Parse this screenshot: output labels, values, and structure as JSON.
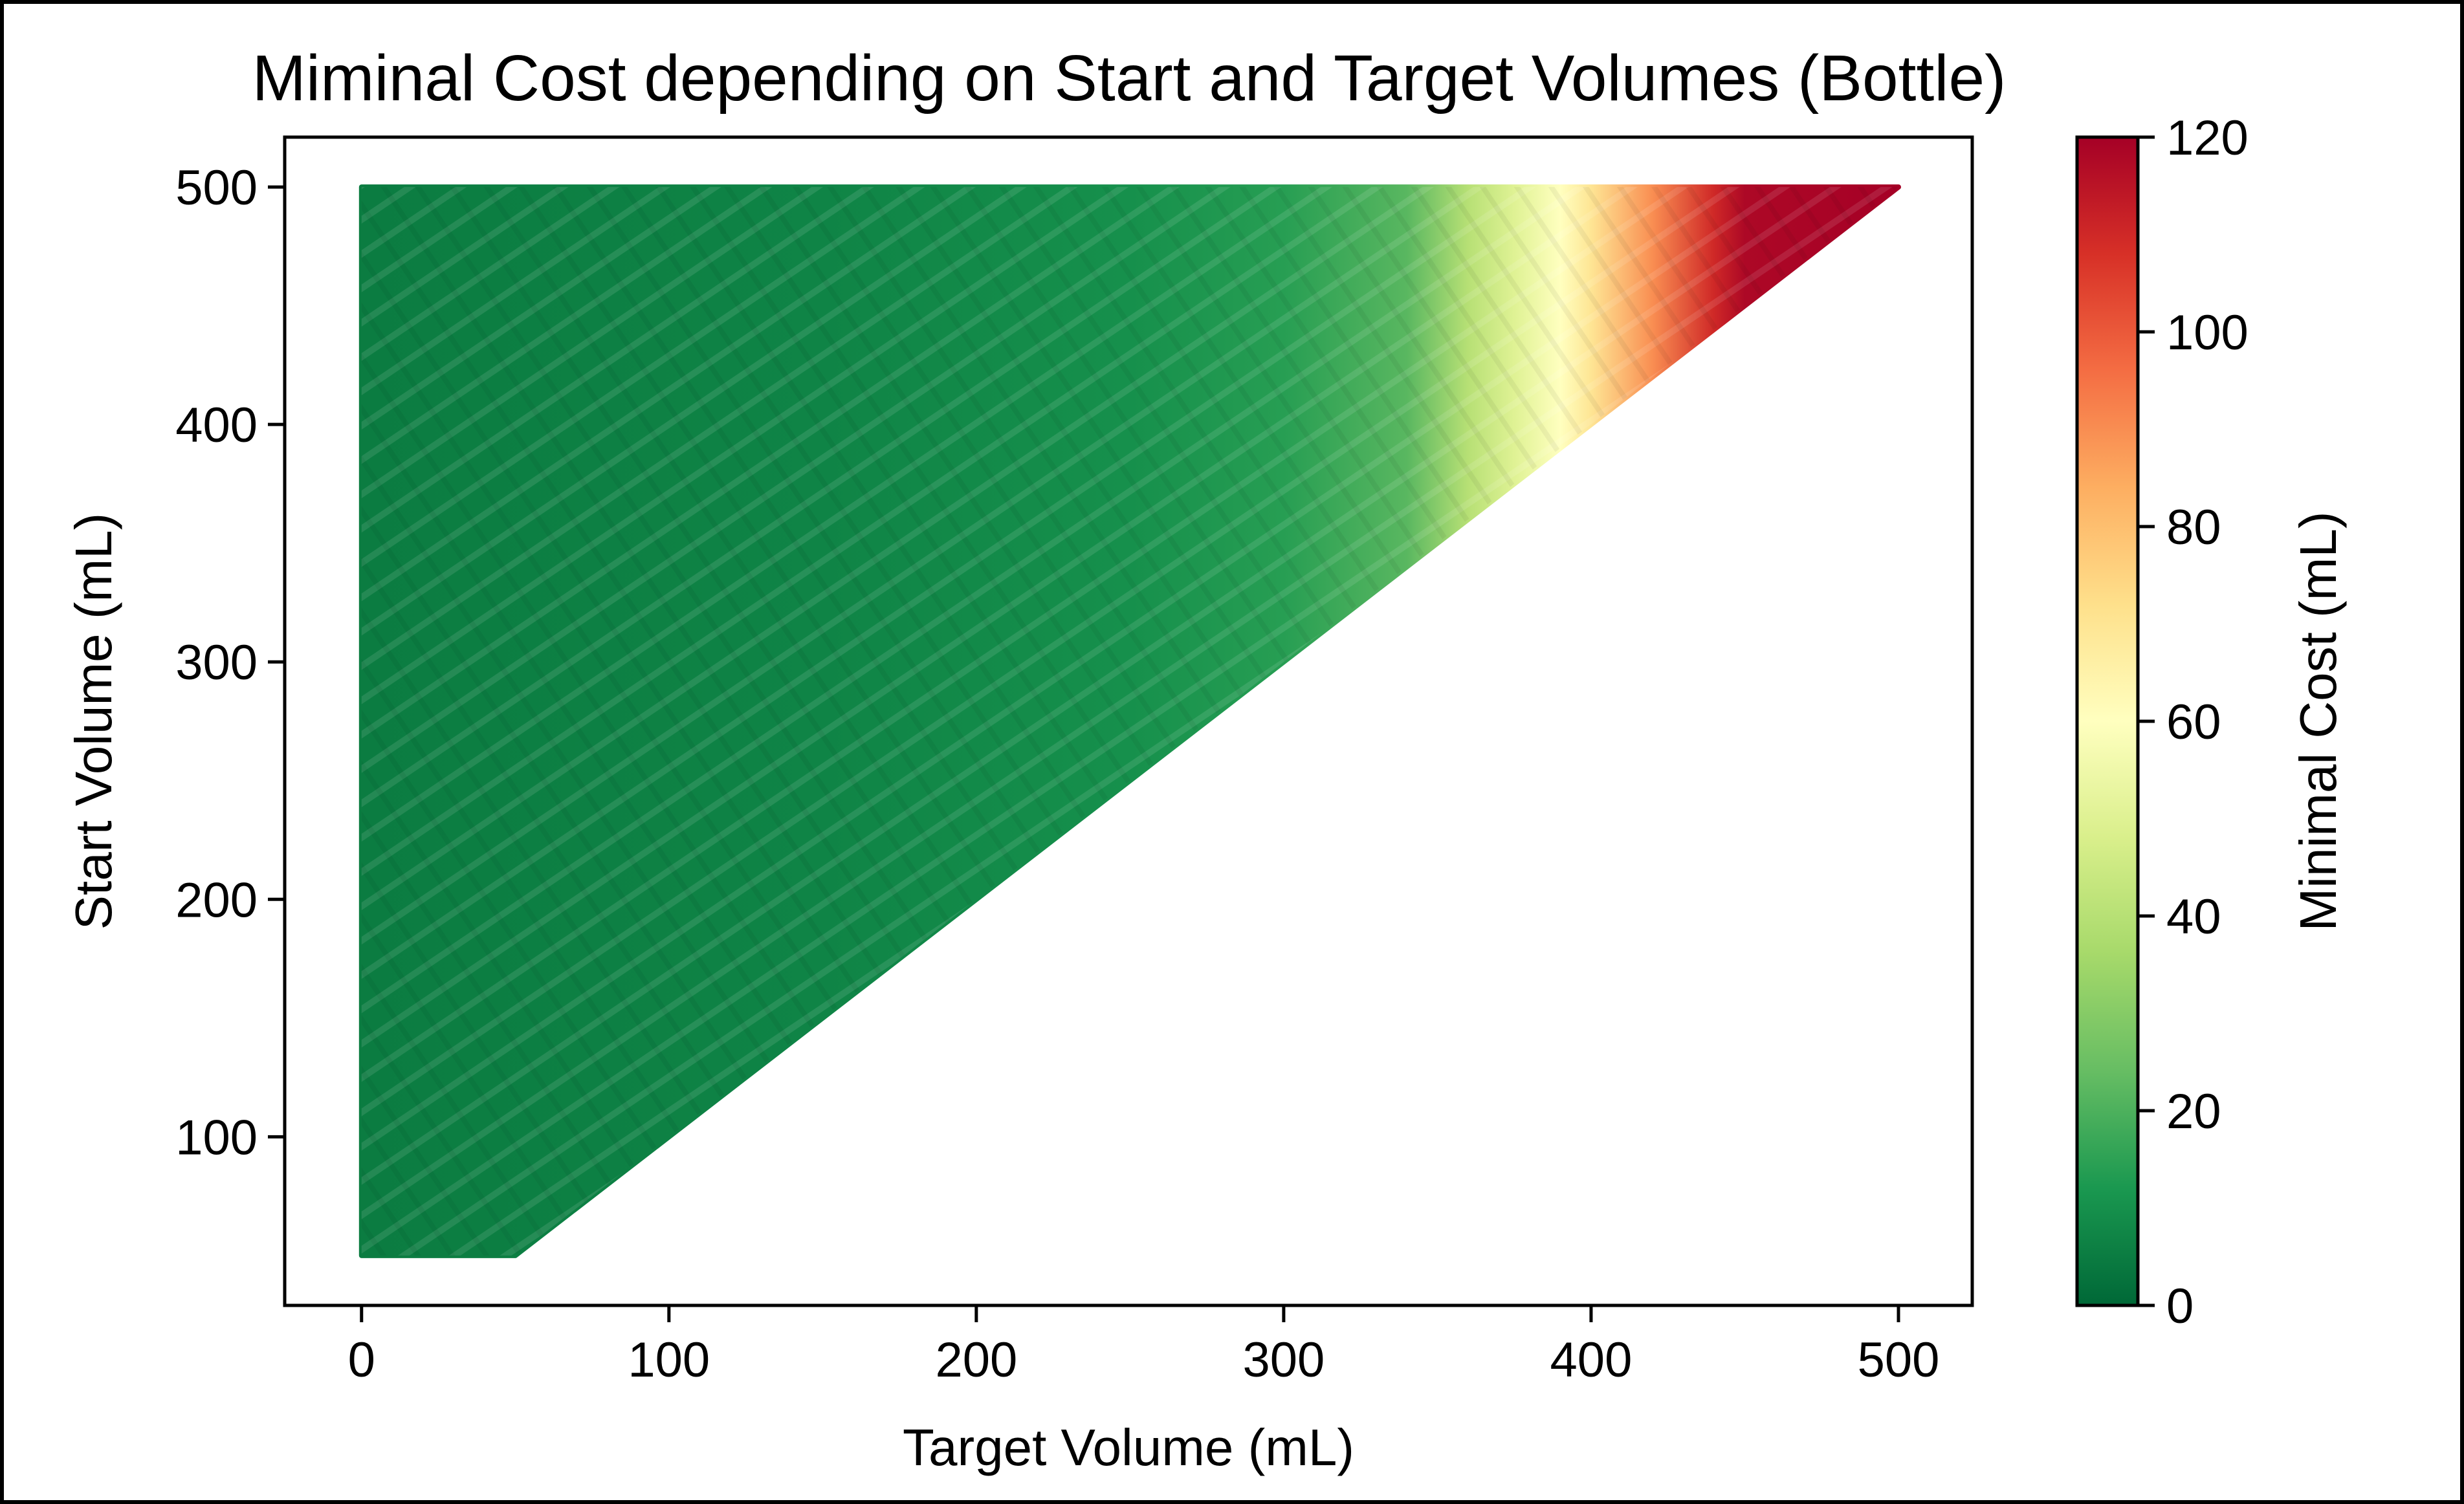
{
  "chart_data": {
    "type": "heatmap",
    "title": "Miminal Cost depending on Start and Target Volumes (Bottle)",
    "xlabel": "Target Volume (mL)",
    "ylabel": "Start Volume (mL)",
    "colorbar_label": "Minimal Cost (mL)",
    "colormap": "RdYlGn_r",
    "xlim": [
      -25,
      524
    ],
    "ylim": [
      29,
      521
    ],
    "clim": [
      0,
      120
    ],
    "x_ticks": [
      0,
      100,
      200,
      300,
      400,
      500
    ],
    "y_ticks": [
      100,
      200,
      300,
      400,
      500
    ],
    "colorbar_ticks": [
      0,
      20,
      40,
      60,
      80,
      100,
      120
    ],
    "domain": {
      "description": "Target Volume from 0 to Start Volume; Start Volume from 50 to 500",
      "x_min": 0,
      "start_min": 50,
      "start_max": 500
    },
    "cost_profile": {
      "x": [
        0,
        150,
        250,
        300,
        340,
        360,
        375,
        390,
        400,
        420,
        440,
        450,
        500
      ],
      "cost": [
        5,
        7,
        10,
        14,
        22,
        40,
        50,
        60,
        70,
        90,
        110,
        118,
        120
      ]
    },
    "grid": false
  }
}
